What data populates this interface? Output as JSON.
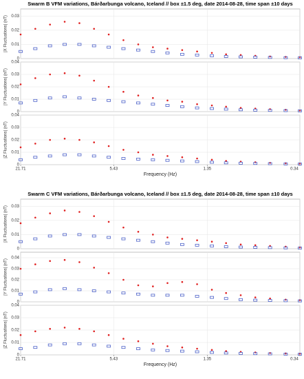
{
  "chart_data": [
    {
      "type": "strip",
      "title": "Swarm B VFM variations, Bárðarbunga volcano, Iceland // box ±1.5 deg, date 2014-08-28, time span ±10 days",
      "xlabel": "Frequency (Hz)",
      "log_x": true,
      "grid": true,
      "x": [
        21.71,
        17.45,
        14.02,
        11.27,
        9.05,
        7.28,
        5.85,
        4.7,
        3.77,
        3.03,
        2.44,
        1.96,
        1.57,
        1.26,
        1.02,
        0.82,
        0.66,
        0.53,
        0.42,
        0.34
      ],
      "xlim": [
        21.71,
        0.34
      ],
      "xticks": [
        21.71,
        5.43,
        1.35,
        0.34
      ],
      "panels": [
        {
          "ylabel": "|X Fluctuations| (nT)",
          "ylim": [
            0,
            0.035
          ],
          "yticks": [
            0,
            0.01,
            0.02,
            0.03
          ],
          "series": [
            {
              "color": "#e02020",
              "values": [
                0.017,
                0.021,
                0.024,
                0.026,
                0.025,
                0.021,
                0.017,
                0.013,
                0.01,
                0.008,
                0.007,
                0.006,
                0.005,
                0.004,
                0.003,
                0.0025,
                0.002,
                0.0015,
                0.0012,
                0.001
              ]
            },
            {
              "color": "#4a5fc8",
              "values": [
                0.005,
                0.007,
                0.009,
                0.01,
                0.01,
                0.009,
                0.008,
                0.007,
                0.006,
                0.005,
                0.004,
                0.003,
                0.0025,
                0.002,
                0.0015,
                0.0012,
                0.001,
                0.0008,
                0.0006,
                0.0005
              ]
            }
          ]
        },
        {
          "ylabel": "|Y Fluctuations| (nT)",
          "ylim": [
            0,
            0.04
          ],
          "yticks": [
            0,
            0.01,
            0.02,
            0.03,
            0.04
          ],
          "series": [
            {
              "color": "#e02020",
              "values": [
                0.022,
                0.027,
                0.03,
                0.031,
                0.029,
                0.025,
                0.02,
                0.016,
                0.013,
                0.011,
                0.009,
                0.008,
                0.006,
                0.005,
                0.004,
                0.003,
                0.0025,
                0.002,
                0.0015,
                0.001
              ]
            },
            {
              "color": "#4a5fc8",
              "values": [
                0.007,
                0.009,
                0.011,
                0.012,
                0.011,
                0.01,
                0.009,
                0.008,
                0.007,
                0.006,
                0.005,
                0.004,
                0.003,
                0.0025,
                0.002,
                0.0015,
                0.0012,
                0.001,
                0.0008,
                0.0006
              ]
            }
          ]
        },
        {
          "ylabel": "|Z Fluctuations| (nT)",
          "ylim": [
            0,
            0.04
          ],
          "yticks": [
            0,
            0.01,
            0.02,
            0.03,
            0.04
          ],
          "series": [
            {
              "color": "#e02020",
              "values": [
                0.014,
                0.017,
                0.02,
                0.021,
                0.02,
                0.018,
                0.015,
                0.012,
                0.01,
                0.008,
                0.007,
                0.006,
                0.005,
                0.004,
                0.003,
                0.0025,
                0.002,
                0.0015,
                0.0012,
                0.001
              ]
            },
            {
              "color": "#4a5fc8",
              "values": [
                0.004,
                0.006,
                0.007,
                0.008,
                0.008,
                0.007,
                0.006,
                0.005,
                0.0045,
                0.004,
                0.0035,
                0.003,
                0.0025,
                0.002,
                0.0015,
                0.0012,
                0.001,
                0.0008,
                0.0006,
                0.0005
              ]
            }
          ]
        }
      ]
    },
    {
      "type": "strip",
      "title": "Swarm C VFM variations, Bárðarbunga volcano, Iceland // box ±1.5 deg, date 2014-08-28, time span ±10 days",
      "xlabel": "Frequency (Hz)",
      "log_x": true,
      "grid": true,
      "x": [
        21.71,
        17.45,
        14.02,
        11.27,
        9.05,
        7.28,
        5.85,
        4.7,
        3.77,
        3.03,
        2.44,
        1.96,
        1.57,
        1.26,
        1.02,
        0.82,
        0.66,
        0.53,
        0.42,
        0.34
      ],
      "xlim": [
        21.71,
        0.34
      ],
      "xticks": [
        21.71,
        5.43,
        1.35,
        0.34
      ],
      "panels": [
        {
          "ylabel": "|X Fluctuations| (nT)",
          "ylim": [
            0,
            0.035
          ],
          "yticks": [
            0,
            0.01,
            0.02,
            0.03
          ],
          "series": [
            {
              "color": "#e02020",
              "values": [
                0.018,
                0.022,
                0.025,
                0.027,
                0.026,
                0.023,
                0.019,
                0.015,
                0.012,
                0.01,
                0.008,
                0.007,
                0.006,
                0.005,
                0.004,
                0.003,
                0.0025,
                0.002,
                0.0015,
                0.001
              ]
            },
            {
              "color": "#4a5fc8",
              "values": [
                0.005,
                0.007,
                0.009,
                0.01,
                0.01,
                0.009,
                0.008,
                0.007,
                0.006,
                0.005,
                0.004,
                0.003,
                0.0025,
                0.002,
                0.0015,
                0.0012,
                0.001,
                0.0008,
                0.0006,
                0.0005
              ]
            }
          ]
        },
        {
          "ylabel": "|Y Fluctuations| (nT)",
          "ylim": [
            0,
            0.045
          ],
          "yticks": [
            0,
            0.01,
            0.02,
            0.03,
            0.04
          ],
          "series": [
            {
              "color": "#e02020",
              "values": [
                0.03,
                0.034,
                0.037,
                0.038,
                0.036,
                0.031,
                0.026,
                0.02,
                0.015,
                0.014,
                0.017,
                0.018,
                0.016,
                0.011,
                0.008,
                0.006,
                0.004,
                0.003,
                0.002,
                0.0015
              ]
            },
            {
              "color": "#4a5fc8",
              "values": [
                0.007,
                0.009,
                0.011,
                0.012,
                0.011,
                0.01,
                0.009,
                0.008,
                0.007,
                0.006,
                0.006,
                0.006,
                0.005,
                0.004,
                0.003,
                0.002,
                0.0015,
                0.0012,
                0.001,
                0.0008
              ]
            }
          ]
        },
        {
          "ylabel": "|Z Fluctuations| (nT)",
          "ylim": [
            0,
            0.04
          ],
          "yticks": [
            0,
            0.01,
            0.02,
            0.03,
            0.04
          ],
          "series": [
            {
              "color": "#e02020",
              "values": [
                0.016,
                0.019,
                0.021,
                0.022,
                0.021,
                0.019,
                0.016,
                0.013,
                0.011,
                0.009,
                0.007,
                0.006,
                0.005,
                0.004,
                0.003,
                0.0025,
                0.002,
                0.0015,
                0.0012,
                0.001
              ]
            },
            {
              "color": "#4a5fc8",
              "values": [
                0.005,
                0.006,
                0.008,
                0.009,
                0.009,
                0.008,
                0.007,
                0.006,
                0.005,
                0.004,
                0.0035,
                0.003,
                0.0025,
                0.002,
                0.0015,
                0.0012,
                0.001,
                0.0008,
                0.0006,
                0.0005
              ]
            }
          ]
        }
      ]
    }
  ]
}
